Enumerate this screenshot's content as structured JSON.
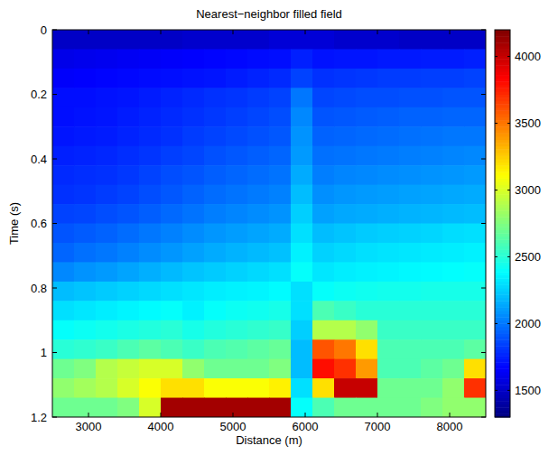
{
  "chart_data": {
    "type": "heatmap",
    "title": "Nearest−neighbor filled field",
    "x_label": "Distance (m)",
    "y_label": "Time (s)",
    "color": "jet",
    "xlim": [
      2500,
      8500
    ],
    "xticks": [
      3000,
      4000,
      5000,
      6000,
      7000,
      8000
    ],
    "ylim": [
      0,
      1.2
    ],
    "yticks": [
      0,
      0.2,
      0.4,
      0.6,
      0.8,
      1,
      1.2
    ],
    "zlim": [
      1300,
      4200
    ],
    "zticks": [
      1500,
      2000,
      2500,
      3000,
      3500,
      4000
    ],
    "x": [
      2650,
      2950,
      3250,
      3550,
      3850,
      4150,
      4450,
      4750,
      5050,
      5350,
      5650,
      5950,
      6250,
      6550,
      6850,
      7150,
      7450,
      7750,
      8050,
      8350
    ],
    "y": [
      0.03,
      0.09,
      0.15,
      0.21,
      0.27,
      0.33,
      0.39,
      0.45,
      0.51,
      0.57,
      0.63,
      0.69,
      0.75,
      0.81,
      0.87,
      0.93,
      0.99,
      1.05,
      1.11,
      1.17
    ],
    "values": [
      [
        1500,
        1500,
        1500,
        1500,
        1500,
        1500,
        1520,
        1520,
        1520,
        1520,
        1550,
        1550,
        1550,
        1520,
        1520,
        1520,
        1500,
        1500,
        1500,
        1500
      ],
      [
        1600,
        1610,
        1620,
        1630,
        1640,
        1650,
        1660,
        1670,
        1680,
        1690,
        1700,
        1750,
        1710,
        1720,
        1720,
        1730,
        1730,
        1740,
        1740,
        1750
      ],
      [
        1650,
        1660,
        1670,
        1680,
        1690,
        1700,
        1710,
        1720,
        1740,
        1760,
        1780,
        1850,
        1800,
        1810,
        1820,
        1830,
        1830,
        1840,
        1840,
        1850
      ],
      [
        1700,
        1700,
        1710,
        1720,
        1740,
        1760,
        1780,
        1800,
        1810,
        1830,
        1850,
        2000,
        1860,
        1870,
        1880,
        1880,
        1890,
        1890,
        1900,
        1900
      ],
      [
        1700,
        1710,
        1720,
        1740,
        1760,
        1780,
        1800,
        1820,
        1840,
        1860,
        1880,
        2050,
        1900,
        1910,
        1920,
        1930,
        1940,
        1940,
        1950,
        1950
      ],
      [
        1720,
        1730,
        1740,
        1760,
        1780,
        1800,
        1830,
        1850,
        1870,
        1890,
        1910,
        2080,
        1940,
        1950,
        1960,
        1970,
        1980,
        1990,
        2000,
        2000
      ],
      [
        1750,
        1760,
        1770,
        1790,
        1810,
        1840,
        1860,
        1890,
        1910,
        1930,
        1950,
        2100,
        1980,
        1990,
        2000,
        2010,
        2020,
        2030,
        2040,
        2050
      ],
      [
        1780,
        1790,
        1800,
        1820,
        1850,
        1880,
        1900,
        1930,
        1950,
        1970,
        1990,
        2150,
        2020,
        2040,
        2050,
        2060,
        2070,
        2080,
        2090,
        2100
      ],
      [
        1800,
        1810,
        1830,
        1850,
        1880,
        1910,
        1940,
        1970,
        1990,
        2010,
        2030,
        2200,
        2070,
        2090,
        2100,
        2110,
        2120,
        2130,
        2140,
        2150
      ],
      [
        1850,
        1860,
        1880,
        1900,
        1930,
        1960,
        1990,
        2020,
        2040,
        2060,
        2080,
        2250,
        2120,
        2140,
        2150,
        2160,
        2170,
        2180,
        2190,
        2200
      ],
      [
        1900,
        1920,
        1940,
        1970,
        2000,
        2030,
        2060,
        2090,
        2110,
        2130,
        2150,
        2300,
        2200,
        2220,
        2240,
        2250,
        2260,
        2270,
        2290,
        2300
      ],
      [
        1950,
        1980,
        2000,
        2030,
        2060,
        2090,
        2120,
        2150,
        2170,
        2190,
        2210,
        2350,
        2260,
        2280,
        2300,
        2310,
        2320,
        2330,
        2340,
        2350
      ],
      [
        2050,
        2080,
        2100,
        2130,
        2160,
        2190,
        2220,
        2240,
        2260,
        2280,
        2300,
        2400,
        2320,
        2340,
        2350,
        2360,
        2370,
        2380,
        2390,
        2400
      ],
      [
        2200,
        2220,
        2240,
        2260,
        2280,
        2300,
        2320,
        2340,
        2350,
        2360,
        2380,
        2300,
        2400,
        2420,
        2430,
        2440,
        2440,
        2450,
        2450,
        2450
      ],
      [
        2300,
        2320,
        2340,
        2360,
        2380,
        2400,
        2350,
        2400,
        2420,
        2430,
        2450,
        2300,
        2600,
        2550,
        2500,
        2500,
        2500,
        2500,
        2500,
        2500
      ],
      [
        2400,
        2420,
        2440,
        2460,
        2480,
        2500,
        2450,
        2480,
        2500,
        2520,
        2540,
        2250,
        2900,
        2900,
        2800,
        2550,
        2550,
        2550,
        2550,
        2550
      ],
      [
        2500,
        2520,
        2550,
        2600,
        2650,
        2600,
        2550,
        2600,
        2620,
        2650,
        2680,
        2200,
        3600,
        3500,
        3200,
        2600,
        2600,
        2600,
        2600,
        2650
      ],
      [
        2700,
        2750,
        2900,
        2950,
        3000,
        3000,
        2800,
        2700,
        2700,
        2700,
        2750,
        2200,
        3800,
        3700,
        3400,
        2600,
        2600,
        2650,
        2700,
        3200
      ],
      [
        2800,
        2850,
        2900,
        3000,
        3100,
        3200,
        3200,
        3100,
        3100,
        3100,
        3150,
        2300,
        3200,
        4000,
        4000,
        2700,
        2700,
        2700,
        2800,
        3700
      ],
      [
        2700,
        2700,
        2700,
        2750,
        3000,
        4100,
        4100,
        4100,
        4100,
        4100,
        4100,
        2400,
        2600,
        2700,
        2700,
        2700,
        2700,
        2750,
        2800,
        2800
      ]
    ]
  }
}
